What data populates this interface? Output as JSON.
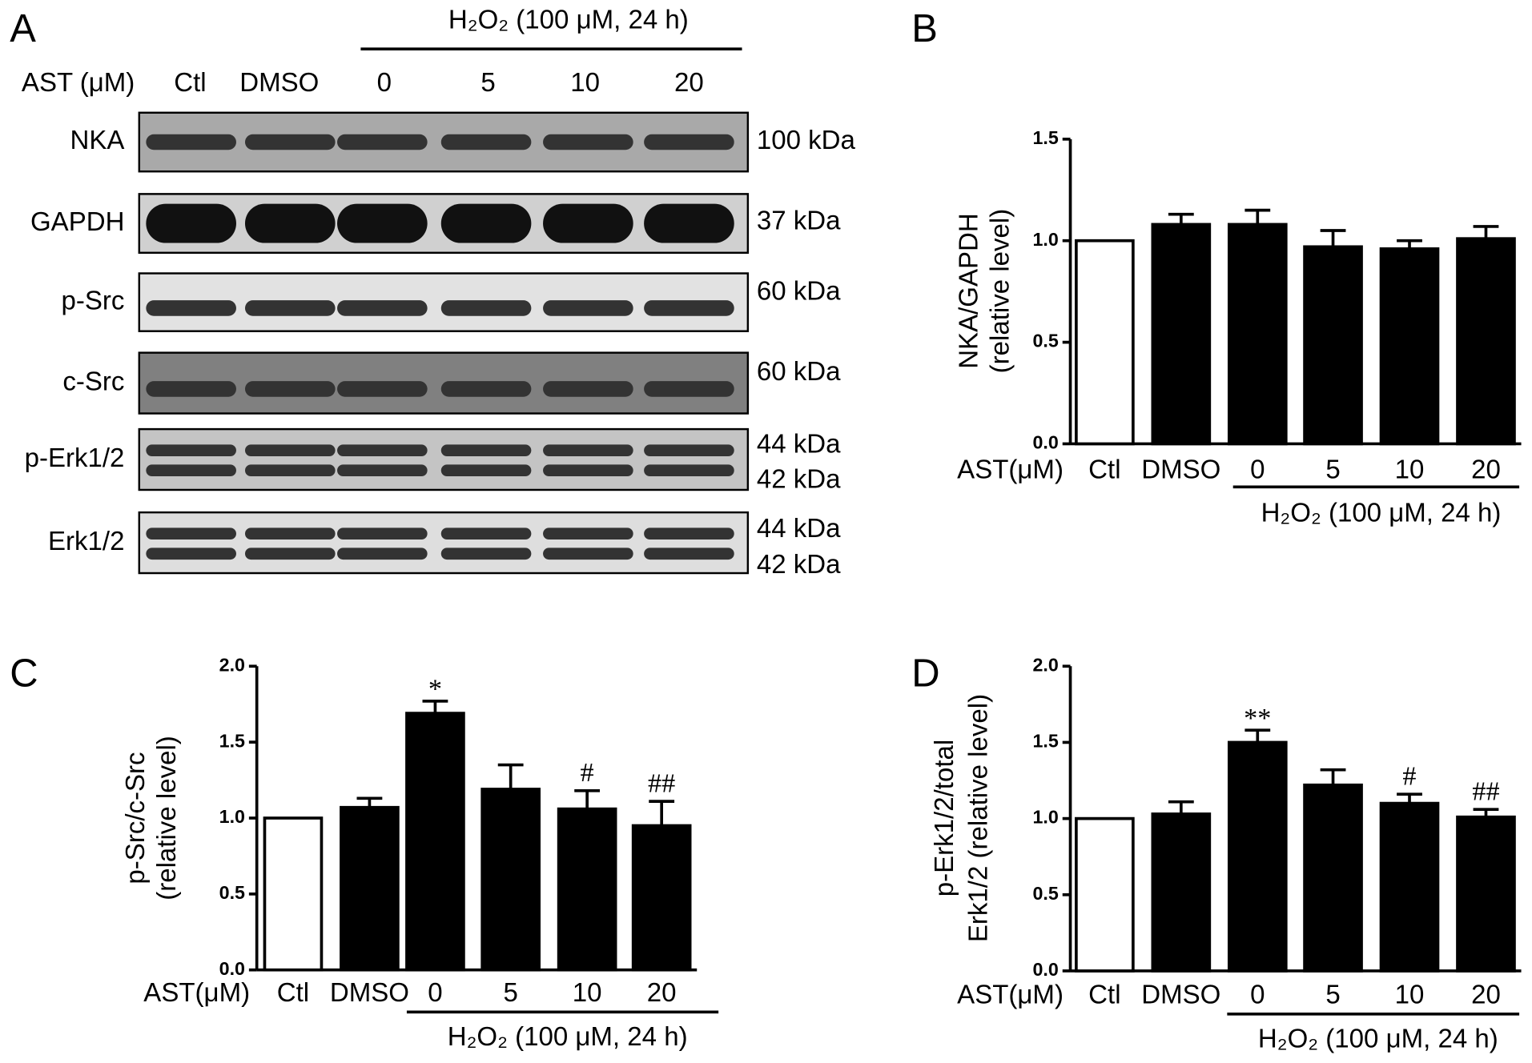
{
  "panel_a": {
    "label": "A",
    "group_label": "H₂O₂ (100 μM, 24 h)",
    "row_label": "AST (μM)",
    "lanes": [
      "Ctl",
      "DMSO",
      "0",
      "5",
      "10",
      "20"
    ],
    "blots": [
      {
        "name": "NKA",
        "sizes": [
          "100 kDa"
        ]
      },
      {
        "name": "GAPDH",
        "sizes": [
          "37 kDa"
        ]
      },
      {
        "name": "p-Src",
        "sizes": [
          "60 kDa"
        ]
      },
      {
        "name": "c-Src",
        "sizes": [
          "60 kDa"
        ]
      },
      {
        "name": "p-Erk1/2",
        "sizes": [
          "44 kDa",
          "42 kDa"
        ]
      },
      {
        "name": "Erk1/2",
        "sizes": [
          "44 kDa",
          "42 kDa"
        ]
      }
    ]
  },
  "chart_data": [
    {
      "type": "bar",
      "label": "B",
      "ylabel": [
        "NKA/GAPDH",
        "(relative level)"
      ],
      "row_label": "AST(μM)",
      "group_label": "H₂O₂ (100 μM, 24 h)",
      "categories": [
        "Ctl",
        "DMSO",
        "0",
        "5",
        "10",
        "20"
      ],
      "values": [
        1.0,
        1.08,
        1.08,
        0.97,
        0.96,
        1.01
      ],
      "errors": [
        null,
        0.05,
        0.07,
        0.08,
        0.04,
        0.06
      ],
      "significance": [
        null,
        null,
        null,
        null,
        null,
        null
      ],
      "colors": [
        "#ffffff",
        "#000000",
        "#000000",
        "#000000",
        "#000000",
        "#000000"
      ],
      "ylim": [
        0,
        1.5
      ],
      "yticks": [
        {
          "value": 0,
          "label": "0.0"
        },
        {
          "value": 0.5,
          "label": "0.5"
        },
        {
          "value": 1,
          "label": "1.0"
        },
        {
          "value": 1.5,
          "label": "1.5"
        }
      ]
    },
    {
      "type": "bar",
      "label": "C",
      "ylabel": [
        "p-Src/c-Src",
        "(relative level)"
      ],
      "row_label": "AST(μM)",
      "group_label": "H₂O₂ (100 μM, 24 h)",
      "categories": [
        "Ctl",
        "DMSO",
        "0",
        "5",
        "10",
        "20"
      ],
      "values": [
        1.0,
        1.07,
        1.69,
        1.19,
        1.06,
        0.95
      ],
      "errors": [
        null,
        0.06,
        0.08,
        0.16,
        0.12,
        0.16
      ],
      "significance": [
        null,
        null,
        "*",
        null,
        "#",
        "##"
      ],
      "colors": [
        "#ffffff",
        "#000000",
        "#000000",
        "#000000",
        "#000000",
        "#000000"
      ],
      "ylim": [
        0,
        2
      ],
      "yticks": [
        {
          "value": 0,
          "label": "0.0"
        },
        {
          "value": 0.5,
          "label": "0.5"
        },
        {
          "value": 1,
          "label": "1.0"
        },
        {
          "value": 1.5,
          "label": "1.5"
        },
        {
          "value": 2,
          "label": "2.0"
        }
      ]
    },
    {
      "type": "bar",
      "label": "D",
      "ylabel": [
        "p-Erk1/2/total",
        "Erk1/2 (relative level)"
      ],
      "row_label": "AST(μM)",
      "group_label": "H₂O₂ (100 μM, 24 h)",
      "categories": [
        "Ctl",
        "DMSO",
        "0",
        "5",
        "10",
        "20"
      ],
      "values": [
        1.0,
        1.03,
        1.5,
        1.22,
        1.1,
        1.01
      ],
      "errors": [
        null,
        0.08,
        0.08,
        0.1,
        0.06,
        0.05
      ],
      "significance": [
        null,
        null,
        "**",
        null,
        "#",
        "##"
      ],
      "colors": [
        "#ffffff",
        "#000000",
        "#000000",
        "#000000",
        "#000000",
        "#000000"
      ],
      "ylim": [
        0,
        2
      ],
      "yticks": [
        {
          "value": 0,
          "label": "0.0"
        },
        {
          "value": 0.5,
          "label": "0.5"
        },
        {
          "value": 1,
          "label": "1.0"
        },
        {
          "value": 1.5,
          "label": "1.5"
        },
        {
          "value": 2,
          "label": "2.0"
        }
      ]
    }
  ]
}
